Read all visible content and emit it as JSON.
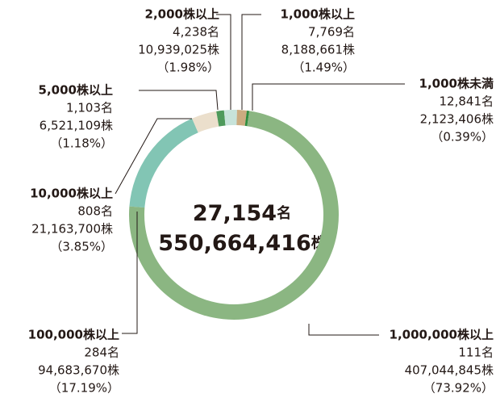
{
  "chart_data": {
    "type": "donut",
    "categories": [
      "100,000株以上",
      "10,000株以上",
      "5,000株以上",
      "2,000株以上",
      "1,000株以上",
      "1,000株未満",
      "1,000,000株以上"
    ],
    "holders": [
      "284名",
      "808名",
      "1,103名",
      "4,238名",
      "7,769名",
      "12,841名",
      "111名"
    ],
    "shares": [
      "94,683,670株",
      "21,163,700株",
      "6,521,109株",
      "10,939,025株",
      "8,188,661株",
      "2,123,406株",
      "407,044,845株"
    ],
    "values": [
      17.19,
      3.85,
      1.18,
      1.98,
      1.49,
      0.39,
      73.92
    ],
    "value_labels": [
      "（17.19%）",
      "（3.85%）",
      "（1.18%）",
      "（1.98%）",
      "（1.49%）",
      "（0.39%）",
      "（73.92%）"
    ],
    "colors": [
      "#82c5b4",
      "#ebdfcc",
      "#4e9a5b",
      "#c7e3da",
      "#cbab80",
      "#2f8d3f",
      "#8bb682"
    ],
    "center": {
      "holders": "27,154",
      "holders_unit": "名",
      "shares": "550,664,416",
      "shares_unit": "株"
    }
  }
}
